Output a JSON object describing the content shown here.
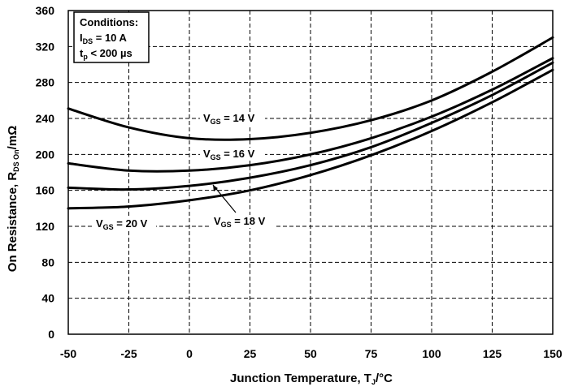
{
  "chart_data": {
    "type": "line",
    "xlabel_main": "Junction Temperature, T",
    "xlabel_sub": "J",
    "xlabel_unit": "/°C",
    "ylabel_main": "On Resistance, R",
    "ylabel_sub": "DS On",
    "ylabel_unit": "/mΩ",
    "xlim": [
      -50,
      150
    ],
    "ylim": [
      0,
      360
    ],
    "xticks": [
      -50,
      -25,
      0,
      25,
      50,
      75,
      100,
      125,
      150
    ],
    "yticks": [
      0,
      40,
      80,
      120,
      160,
      200,
      240,
      280,
      320,
      360
    ],
    "grid": true,
    "conditions": {
      "title": "Conditions:",
      "line1_main": "I",
      "line1_sub": "DS",
      "line1_rest": " = 10 A",
      "line2_main": "t",
      "line2_sub": "p",
      "line2_rest": " < 200 µs"
    },
    "series": [
      {
        "name": "VGS = 14 V",
        "label_main": "V",
        "label_sub": "GS",
        "label_rest": " = 14 V",
        "x": [
          -50,
          -25,
          0,
          25,
          50,
          75,
          100,
          125,
          150
        ],
        "y": [
          251,
          230,
          218,
          217,
          224,
          238,
          260,
          292,
          330
        ]
      },
      {
        "name": "VGS = 16 V",
        "label_main": "V",
        "label_sub": "GS",
        "label_rest": " = 16 V",
        "x": [
          -50,
          -25,
          0,
          25,
          50,
          75,
          100,
          125,
          150
        ],
        "y": [
          190,
          182,
          182,
          188,
          200,
          218,
          242,
          272,
          307
        ]
      },
      {
        "name": "VGS = 18 V",
        "label_main": "V",
        "label_sub": "GS",
        "label_rest": " = 18 V",
        "x": [
          -50,
          -25,
          0,
          25,
          50,
          75,
          100,
          125,
          150
        ],
        "y": [
          163,
          161,
          165,
          174,
          188,
          208,
          235,
          266,
          302
        ]
      },
      {
        "name": "VGS = 20 V",
        "label_main": "V",
        "label_sub": "GS",
        "label_rest": " = 20 V",
        "x": [
          -50,
          -25,
          0,
          25,
          50,
          75,
          100,
          125,
          150
        ],
        "y": [
          140,
          142,
          149,
          160,
          177,
          199,
          226,
          258,
          294
        ]
      }
    ]
  }
}
